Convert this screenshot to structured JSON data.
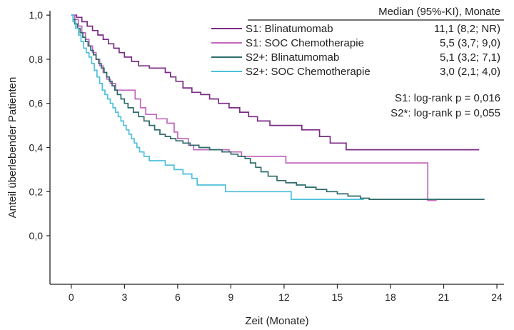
{
  "chart_data": {
    "type": "line",
    "subtype": "kaplan-meier step",
    "xlabel": "Zeit (Monate)",
    "ylabel": "Anteil überlebender Patienten",
    "xlim": [
      -1.2,
      24.4
    ],
    "ylim": [
      -0.22,
      1.02
    ],
    "xticks": [
      0,
      3,
      6,
      9,
      12,
      15,
      18,
      21,
      24
    ],
    "yticks": [
      0.0,
      0.2,
      0.4,
      0.6,
      0.8,
      1.0
    ],
    "ytick_labels": [
      "0,0",
      "0,2",
      "0,4",
      "0,6",
      "0,8",
      "1,0"
    ],
    "legend": {
      "header": "Median (95%-KI), Monate",
      "placement": "top-right"
    },
    "series": [
      {
        "name": "S1: Blinatumomab",
        "median_label": "11,1 (8,2; NR)",
        "color": "#7b2a85",
        "points": [
          [
            0,
            1.0
          ],
          [
            0.3,
            0.99
          ],
          [
            0.6,
            0.97
          ],
          [
            0.9,
            0.95
          ],
          [
            1.2,
            0.93
          ],
          [
            1.5,
            0.91
          ],
          [
            1.8,
            0.89
          ],
          [
            2.1,
            0.87
          ],
          [
            2.4,
            0.85
          ],
          [
            2.7,
            0.83
          ],
          [
            3.0,
            0.81
          ],
          [
            3.4,
            0.79
          ],
          [
            3.8,
            0.77
          ],
          [
            4.4,
            0.76
          ],
          [
            5.3,
            0.74
          ],
          [
            5.6,
            0.72
          ],
          [
            5.9,
            0.7
          ],
          [
            6.3,
            0.67
          ],
          [
            6.8,
            0.65
          ],
          [
            7.3,
            0.64
          ],
          [
            7.8,
            0.62
          ],
          [
            8.3,
            0.6
          ],
          [
            8.9,
            0.58
          ],
          [
            9.5,
            0.56
          ],
          [
            10.0,
            0.54
          ],
          [
            10.5,
            0.52
          ],
          [
            11.2,
            0.5
          ],
          [
            13.0,
            0.48
          ],
          [
            14.0,
            0.45
          ],
          [
            14.6,
            0.42
          ],
          [
            15.5,
            0.39
          ],
          [
            23.0,
            0.39
          ]
        ]
      },
      {
        "name": "S1: SOC Chemotherapie",
        "median_label": "5,5 (3,7; 9,0)",
        "color": "#c267be",
        "points": [
          [
            0,
            1.0
          ],
          [
            0.2,
            0.98
          ],
          [
            0.4,
            0.95
          ],
          [
            0.6,
            0.92
          ],
          [
            0.8,
            0.89
          ],
          [
            1.0,
            0.86
          ],
          [
            1.2,
            0.83
          ],
          [
            1.4,
            0.8
          ],
          [
            1.6,
            0.77
          ],
          [
            1.8,
            0.74
          ],
          [
            2.0,
            0.71
          ],
          [
            2.2,
            0.69
          ],
          [
            2.5,
            0.66
          ],
          [
            3.6,
            0.62
          ],
          [
            3.9,
            0.58
          ],
          [
            4.2,
            0.55
          ],
          [
            4.8,
            0.53
          ],
          [
            5.4,
            0.51
          ],
          [
            5.8,
            0.47
          ],
          [
            6.0,
            0.44
          ],
          [
            6.6,
            0.41
          ],
          [
            6.9,
            0.39
          ],
          [
            8.9,
            0.38
          ],
          [
            9.6,
            0.36
          ],
          [
            12.1,
            0.33
          ],
          [
            20.1,
            0.16
          ],
          [
            20.6,
            0.16
          ]
        ]
      },
      {
        "name": "S2+: Blinatumomab",
        "median_label": "5,1 (3,2; 7,1)",
        "color": "#2e6b6b",
        "points": [
          [
            0,
            1.0
          ],
          [
            0.1,
            0.98
          ],
          [
            0.2,
            0.96
          ],
          [
            0.35,
            0.94
          ],
          [
            0.5,
            0.92
          ],
          [
            0.65,
            0.9
          ],
          [
            0.8,
            0.88
          ],
          [
            0.95,
            0.86
          ],
          [
            1.1,
            0.84
          ],
          [
            1.25,
            0.82
          ],
          [
            1.4,
            0.8
          ],
          [
            1.55,
            0.78
          ],
          [
            1.7,
            0.76
          ],
          [
            1.85,
            0.74
          ],
          [
            2.0,
            0.72
          ],
          [
            2.15,
            0.7
          ],
          [
            2.3,
            0.68
          ],
          [
            2.45,
            0.66
          ],
          [
            2.6,
            0.64
          ],
          [
            2.8,
            0.62
          ],
          [
            3.0,
            0.6
          ],
          [
            3.2,
            0.58
          ],
          [
            3.5,
            0.56
          ],
          [
            3.8,
            0.54
          ],
          [
            4.1,
            0.52
          ],
          [
            4.4,
            0.5
          ],
          [
            4.7,
            0.48
          ],
          [
            5.0,
            0.46
          ],
          [
            5.3,
            0.45
          ],
          [
            5.6,
            0.44
          ],
          [
            5.9,
            0.43
          ],
          [
            6.3,
            0.42
          ],
          [
            6.7,
            0.41
          ],
          [
            7.2,
            0.4
          ],
          [
            7.8,
            0.39
          ],
          [
            8.5,
            0.38
          ],
          [
            9.0,
            0.37
          ],
          [
            9.4,
            0.36
          ],
          [
            9.8,
            0.35
          ],
          [
            10.1,
            0.33
          ],
          [
            10.4,
            0.31
          ],
          [
            10.7,
            0.29
          ],
          [
            11.1,
            0.27
          ],
          [
            11.6,
            0.25
          ],
          [
            12.1,
            0.24
          ],
          [
            12.7,
            0.23
          ],
          [
            13.2,
            0.22
          ],
          [
            13.8,
            0.21
          ],
          [
            14.4,
            0.2
          ],
          [
            15.0,
            0.19
          ],
          [
            15.6,
            0.18
          ],
          [
            16.3,
            0.17
          ],
          [
            16.8,
            0.165
          ],
          [
            23.3,
            0.165
          ]
        ]
      },
      {
        "name": "S2+: SOC Chemotherapie",
        "median_label": "3,0 (2,1; 4,0)",
        "color": "#4dbfdc",
        "points": [
          [
            0,
            1.0
          ],
          [
            0.1,
            0.97
          ],
          [
            0.25,
            0.94
          ],
          [
            0.4,
            0.91
          ],
          [
            0.55,
            0.88
          ],
          [
            0.7,
            0.85
          ],
          [
            0.85,
            0.83
          ],
          [
            1.0,
            0.81
          ],
          [
            1.15,
            0.78
          ],
          [
            1.3,
            0.75
          ],
          [
            1.45,
            0.72
          ],
          [
            1.6,
            0.69
          ],
          [
            1.75,
            0.66
          ],
          [
            1.9,
            0.64
          ],
          [
            2.05,
            0.62
          ],
          [
            2.2,
            0.6
          ],
          [
            2.35,
            0.58
          ],
          [
            2.5,
            0.56
          ],
          [
            2.65,
            0.54
          ],
          [
            2.8,
            0.52
          ],
          [
            2.95,
            0.5
          ],
          [
            3.1,
            0.48
          ],
          [
            3.25,
            0.46
          ],
          [
            3.4,
            0.44
          ],
          [
            3.55,
            0.42
          ],
          [
            3.7,
            0.4
          ],
          [
            3.85,
            0.38
          ],
          [
            4.1,
            0.36
          ],
          [
            4.4,
            0.34
          ],
          [
            5.3,
            0.32
          ],
          [
            5.8,
            0.3
          ],
          [
            6.3,
            0.28
          ],
          [
            6.8,
            0.26
          ],
          [
            7.1,
            0.23
          ],
          [
            8.7,
            0.2
          ],
          [
            12.4,
            0.165
          ],
          [
            16.5,
            0.165
          ]
        ]
      }
    ],
    "annotations": [
      "S1: log-rank p = 0,016",
      "S2*: log-rank p = 0,055"
    ],
    "grid": false
  }
}
